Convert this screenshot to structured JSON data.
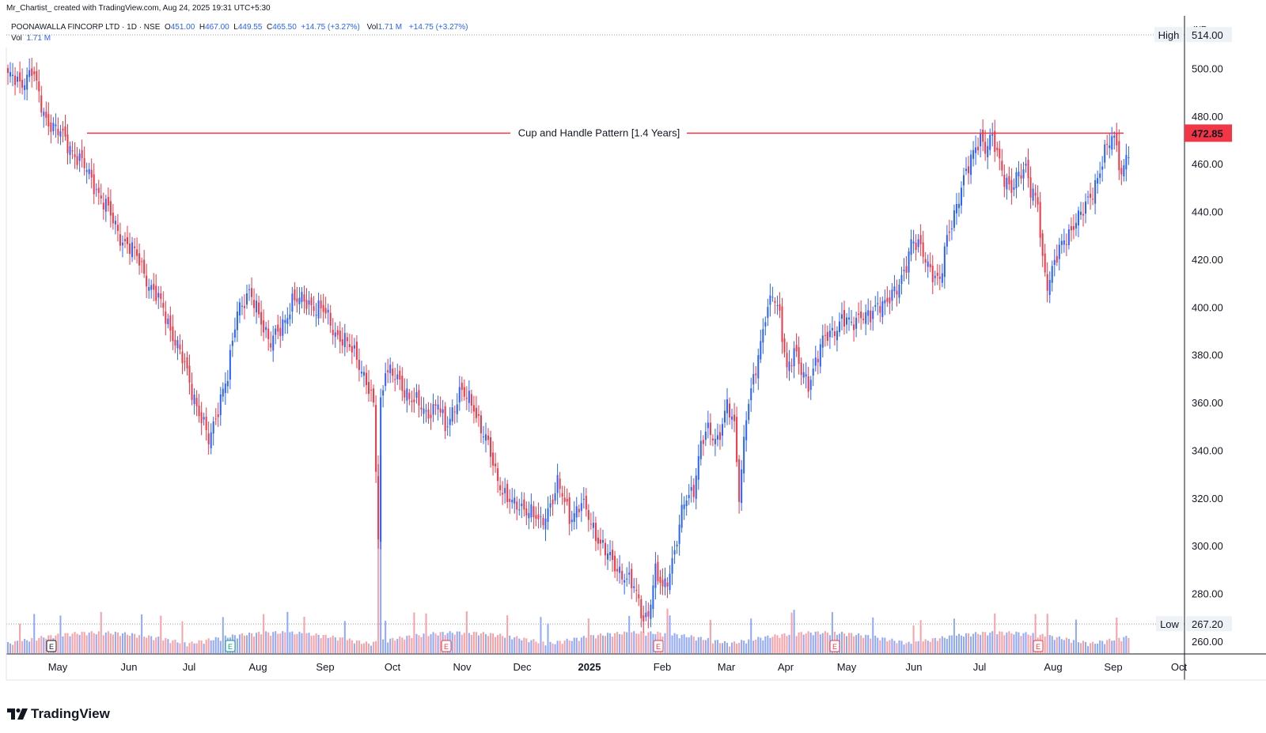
{
  "attribution": "Mr_Chartist_ created with TradingView.com, Aug 24, 2025 19:31 UTC+5:30",
  "legend": {
    "symbol": "POONAWALLA FINCORP LTD · 1D · NSE",
    "open_label": "O",
    "open": "451.00",
    "high_label": "H",
    "high": "467.00",
    "low_label": "L",
    "low": "449.55",
    "close_label": "C",
    "close": "465.50",
    "change": "+14.75 (+3.27%)",
    "vol_label": "Vol",
    "vol": "1.71 M",
    "vol_change": "+14.75 (+3.27%)",
    "vol_row_label": "Vol",
    "vol_row_value": "1.71 M"
  },
  "brand": "TradingView",
  "colors": {
    "up": "#2962ff",
    "down": "#f23645",
    "line": "#f23645",
    "grid_dotted": "#9598a1"
  },
  "chart_data": {
    "type": "candlestick",
    "currency": "INR",
    "y_ticks": [
      "500.00",
      "480.00",
      "460.00",
      "440.00",
      "420.00",
      "400.00",
      "380.00",
      "360.00",
      "340.00",
      "320.00",
      "300.00",
      "280.00",
      "260.00"
    ],
    "y_tick_values": [
      500,
      480,
      460,
      440,
      420,
      400,
      380,
      360,
      340,
      320,
      300,
      280,
      260
    ],
    "ylim": [
      255,
      522
    ],
    "x_labels": [
      "May",
      "Jun",
      "Jul",
      "Aug",
      "Sep",
      "Oct",
      "Nov",
      "Dec",
      "2025",
      "Feb",
      "Mar",
      "Apr",
      "May",
      "Jun",
      "Jul",
      "Aug",
      "Sep",
      "Oct"
    ],
    "high_label": "High",
    "high_value": "514.00",
    "high": 514.0,
    "low_label": "Low",
    "low_value": "267.20",
    "low": 267.2,
    "current_value": "472.85",
    "current": 472.85,
    "annotation": "Cup and Handle Pattern [1.4 Years]",
    "resistance": 472.85,
    "earnings_marker": "E",
    "anchors": [
      [
        0,
        497
      ],
      [
        5,
        493
      ],
      [
        10,
        500
      ],
      [
        15,
        480
      ],
      [
        20,
        475
      ],
      [
        25,
        468
      ],
      [
        30,
        462
      ],
      [
        38,
        448
      ],
      [
        42,
        440
      ],
      [
        48,
        428
      ],
      [
        55,
        420
      ],
      [
        60,
        407
      ],
      [
        65,
        400
      ],
      [
        70,
        385
      ],
      [
        75,
        373
      ],
      [
        80,
        355
      ],
      [
        84,
        344
      ],
      [
        89,
        362
      ],
      [
        92,
        370
      ],
      [
        96,
        400
      ],
      [
        101,
        405
      ],
      [
        106,
        395
      ],
      [
        110,
        385
      ],
      [
        114,
        390
      ],
      [
        119,
        403
      ],
      [
        126,
        402
      ],
      [
        133,
        397
      ],
      [
        138,
        388
      ],
      [
        146,
        380
      ],
      [
        150,
        368
      ],
      [
        153,
        358
      ],
      [
        155,
        305
      ],
      [
        156,
        360
      ],
      [
        158,
        375
      ],
      [
        162,
        370
      ],
      [
        169,
        362
      ],
      [
        175,
        355
      ],
      [
        180,
        360
      ],
      [
        183,
        348
      ],
      [
        189,
        365
      ],
      [
        195,
        358
      ],
      [
        200,
        345
      ],
      [
        204,
        330
      ],
      [
        208,
        322
      ],
      [
        212,
        316
      ],
      [
        218,
        316
      ],
      [
        223,
        308
      ],
      [
        227,
        318
      ],
      [
        230,
        326
      ],
      [
        235,
        312
      ],
      [
        240,
        318
      ],
      [
        245,
        307
      ],
      [
        249,
        300
      ],
      [
        253,
        292
      ],
      [
        258,
        288
      ],
      [
        262,
        282
      ],
      [
        266,
        270
      ],
      [
        268,
        272
      ],
      [
        271,
        288
      ],
      [
        274,
        282
      ],
      [
        277,
        290
      ],
      [
        280,
        302
      ],
      [
        283,
        318
      ],
      [
        287,
        325
      ],
      [
        290,
        342
      ],
      [
        293,
        348
      ],
      [
        297,
        345
      ],
      [
        301,
        358
      ],
      [
        304,
        350
      ],
      [
        306,
        322
      ],
      [
        309,
        355
      ],
      [
        312,
        368
      ],
      [
        315,
        385
      ],
      [
        317,
        398
      ],
      [
        320,
        405
      ],
      [
        323,
        395
      ],
      [
        326,
        375
      ],
      [
        329,
        382
      ],
      [
        332,
        372
      ],
      [
        335,
        368
      ],
      [
        338,
        378
      ],
      [
        341,
        385
      ],
      [
        345,
        390
      ],
      [
        349,
        395
      ],
      [
        353,
        392
      ],
      [
        357,
        398
      ],
      [
        361,
        395
      ],
      [
        365,
        402
      ],
      [
        369,
        404
      ],
      [
        372,
        406
      ],
      [
        375,
        415
      ],
      [
        378,
        428
      ],
      [
        381,
        425
      ],
      [
        384,
        420
      ],
      [
        387,
        415
      ],
      [
        390,
        410
      ],
      [
        393,
        428
      ],
      [
        396,
        440
      ],
      [
        399,
        450
      ],
      [
        402,
        458
      ],
      [
        405,
        468
      ],
      [
        407,
        472
      ],
      [
        409,
        466
      ],
      [
        412,
        470
      ],
      [
        415,
        462
      ],
      [
        417,
        455
      ],
      [
        420,
        448
      ],
      [
        423,
        455
      ],
      [
        426,
        460
      ],
      [
        428,
        450
      ],
      [
        431,
        442
      ],
      [
        433,
        418
      ],
      [
        435,
        410
      ],
      [
        438,
        420
      ],
      [
        441,
        425
      ],
      [
        444,
        430
      ],
      [
        447,
        438
      ],
      [
        450,
        440
      ],
      [
        453,
        445
      ],
      [
        456,
        455
      ],
      [
        459,
        465
      ],
      [
        462,
        470
      ],
      [
        464,
        468
      ],
      [
        466,
        455
      ],
      [
        468,
        465
      ]
    ]
  }
}
